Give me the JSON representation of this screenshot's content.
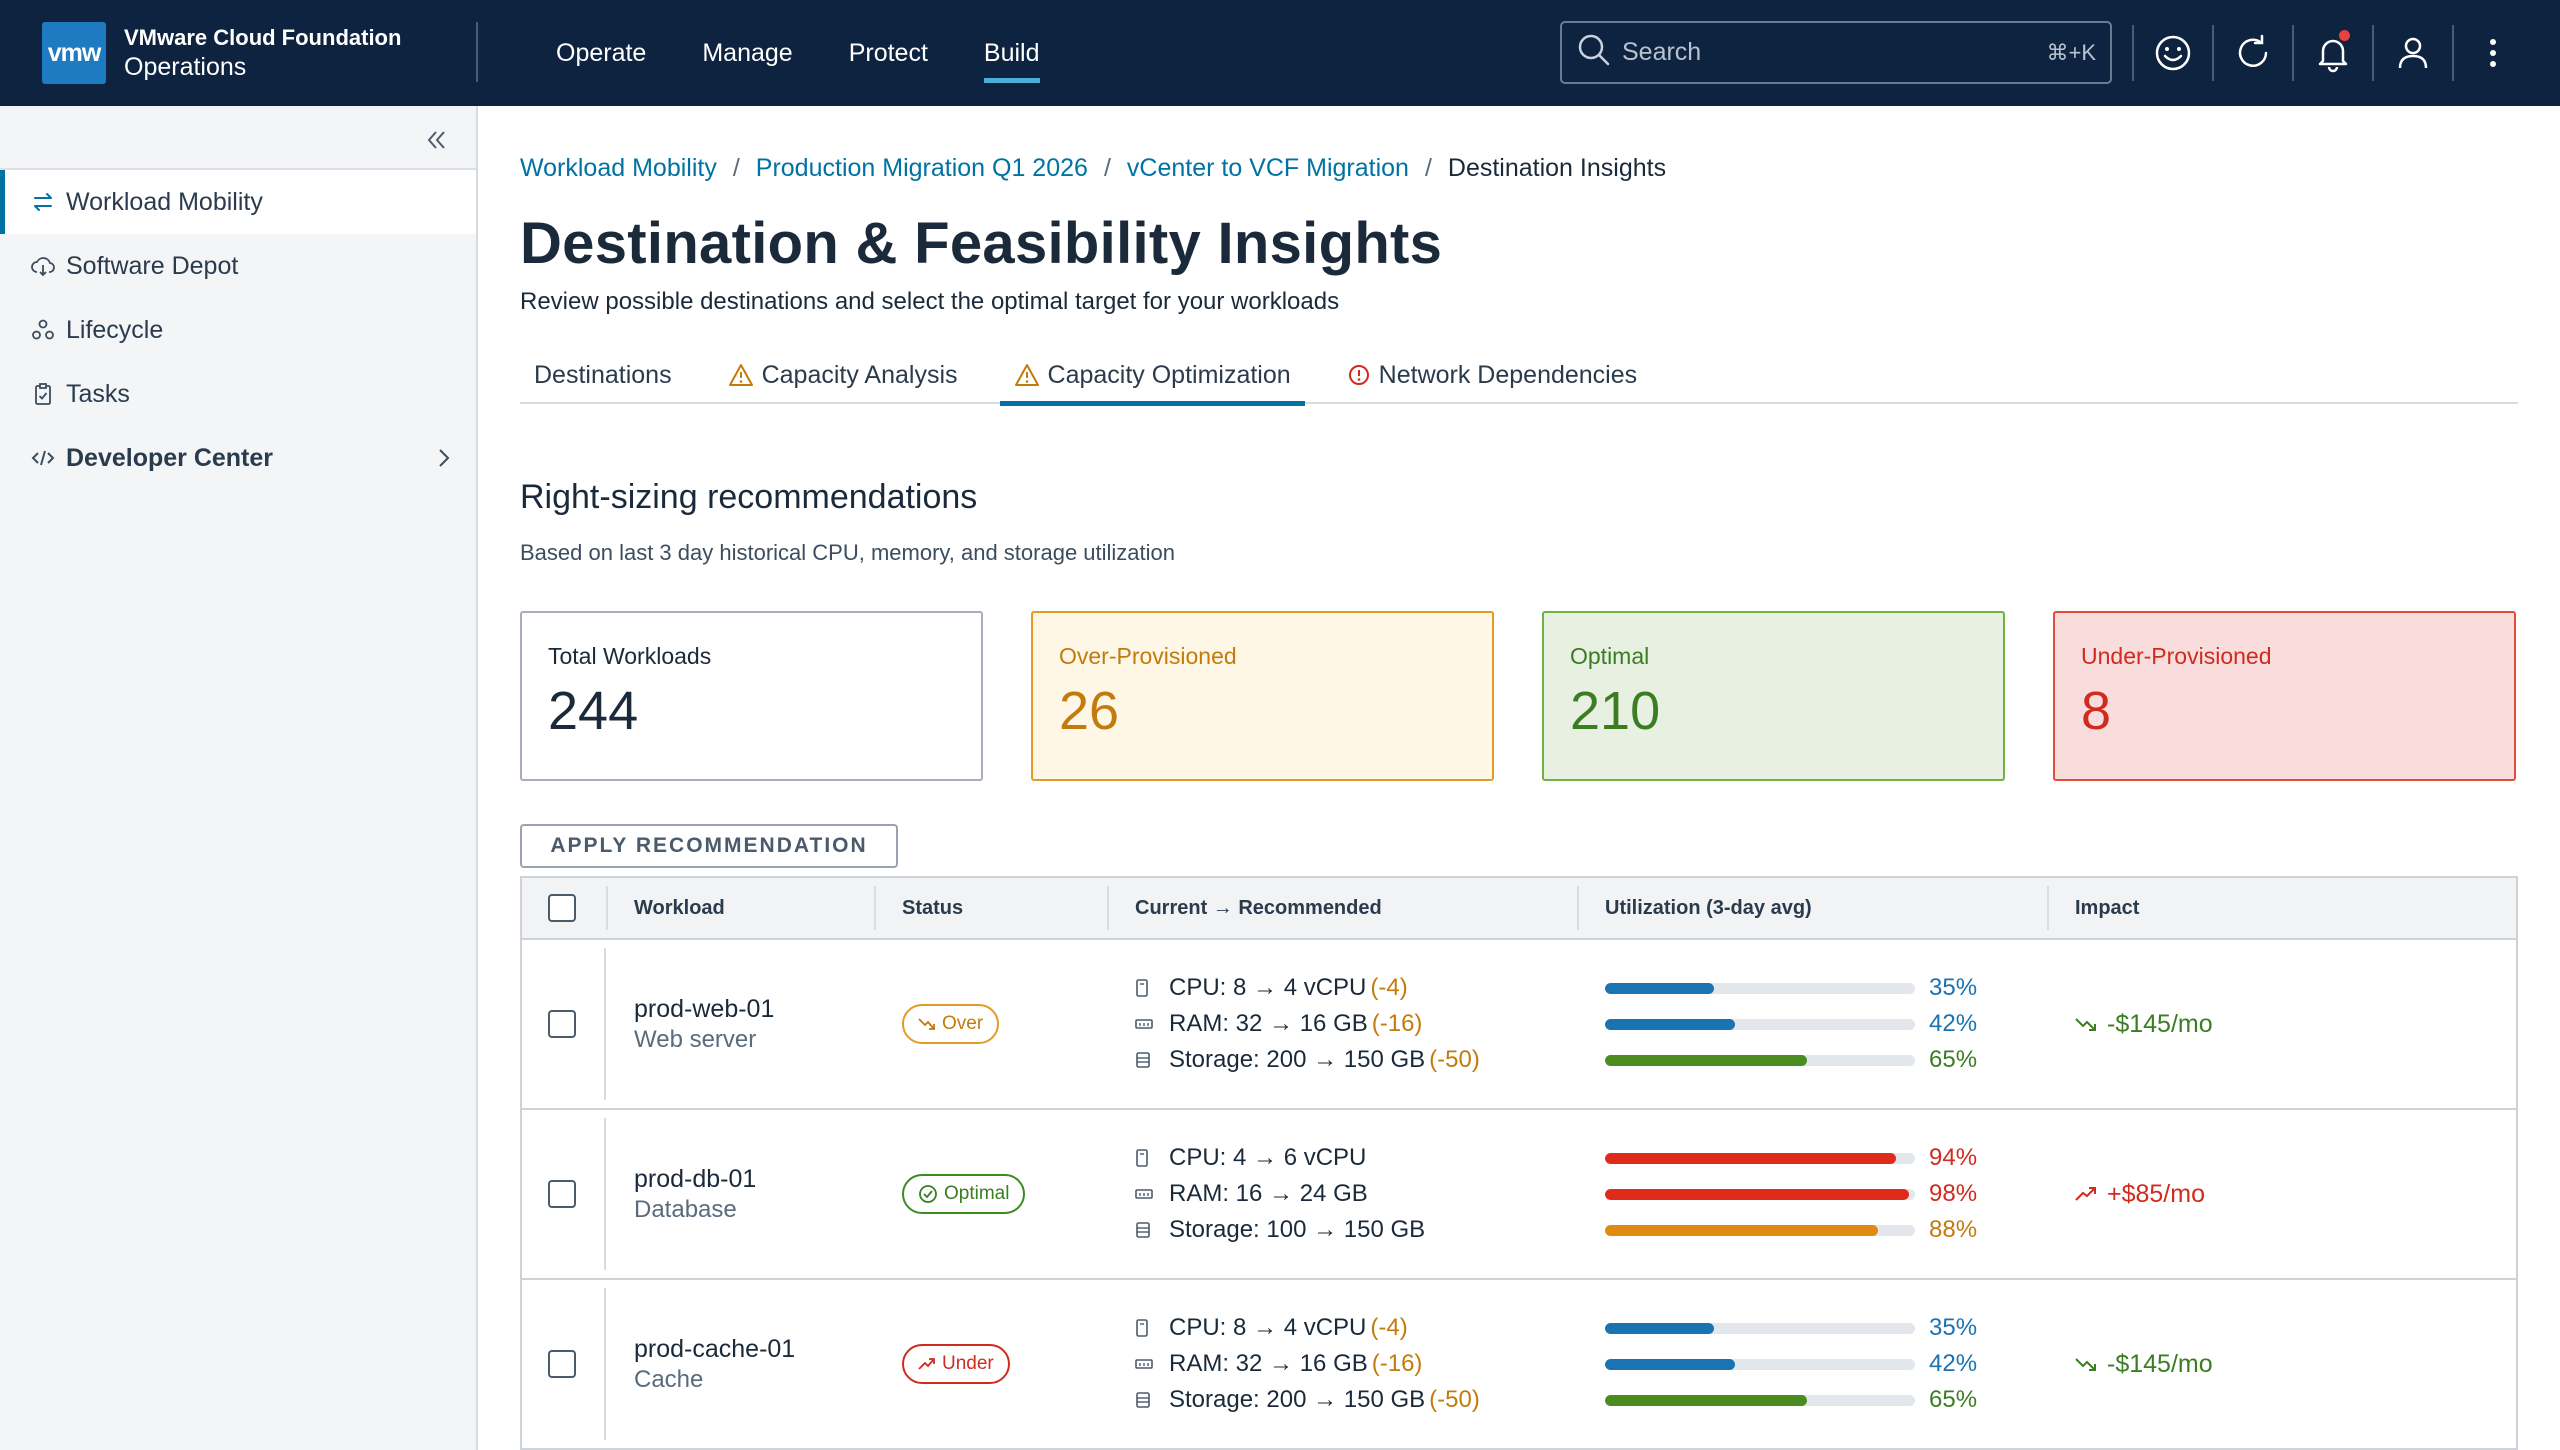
{
  "header": {
    "logo_text": "vmw",
    "brand_line1": "VMware Cloud Foundation",
    "brand_line2": "Operations",
    "nav": [
      "Operate",
      "Manage",
      "Protect",
      "Build"
    ],
    "active_nav": "Build",
    "search_placeholder": "Search",
    "search_shortcut": "⌘+K"
  },
  "sidebar": {
    "items": [
      {
        "label": "Workload Mobility",
        "icon": "swap-arrows-icon"
      },
      {
        "label": "Software Depot",
        "icon": "cloud-download-icon"
      },
      {
        "label": "Lifecycle",
        "icon": "lifecycle-icon"
      },
      {
        "label": "Tasks",
        "icon": "clipboard-icon"
      },
      {
        "label": "Developer Center",
        "icon": "code-icon"
      }
    ]
  },
  "breadcrumb": {
    "items": [
      "Workload Mobility",
      "Production Migration Q1 2026",
      "vCenter to VCF Migration"
    ],
    "current": "Destination Insights",
    "sep": "/"
  },
  "page": {
    "title": "Destination & Feasibility Insights",
    "subtitle": "Review possible destinations and select the optimal target for your workloads"
  },
  "tabs": [
    {
      "label": "Destinations"
    },
    {
      "label": "Capacity Analysis"
    },
    {
      "label": "Capacity Optimization"
    },
    {
      "label": "Network Dependencies"
    }
  ],
  "section": {
    "title": "Right-sizing recommendations",
    "subtitle": "Based on last 3 day historical CPU, memory, and storage utilization"
  },
  "cards": {
    "total": {
      "label": "Total Workloads",
      "value": "244"
    },
    "over": {
      "label": "Over-Provisioned",
      "value": "26"
    },
    "optimal": {
      "label": "Optimal",
      "value": "210"
    },
    "under": {
      "label": "Under-Provisioned",
      "value": "8"
    }
  },
  "apply_button": "APPLY RECOMMENDATION",
  "table": {
    "headers": [
      "Workload",
      "Status",
      "Current → Recommended",
      "Utilization (3-day avg)",
      "Impact"
    ],
    "rows": [
      {
        "name": "prod-web-01",
        "desc": "Web server",
        "status": "Over",
        "cpu": "CPU: 8 → 4 vCPU",
        "cpu_delta": "(-4)",
        "ram": "RAM: 32 → 16 GB",
        "ram_delta": "(-16)",
        "storage": "Storage: 200 → 150 GB",
        "storage_delta": "(-50)",
        "util": [
          {
            "pct": "35%",
            "value": 35,
            "color": "#1a73b3",
            "text_color": "#1a73b3"
          },
          {
            "pct": "42%",
            "value": 42,
            "color": "#1a73b3",
            "text_color": "#1a73b3"
          },
          {
            "pct": "65%",
            "value": 65,
            "color": "#4a8c1f",
            "text_color": "#3b7d23"
          }
        ],
        "impact": "-$145/mo"
      },
      {
        "name": "prod-db-01",
        "desc": "Database",
        "status": "Optimal",
        "cpu": "CPU: 4 → 6 vCPU",
        "cpu_delta": "",
        "ram": "RAM: 16 → 24 GB",
        "ram_delta": "",
        "storage": "Storage: 100 → 150 GB",
        "storage_delta": "",
        "util": [
          {
            "pct": "94%",
            "value": 94,
            "color": "#e12b1a",
            "text_color": "#d02b1f"
          },
          {
            "pct": "98%",
            "value": 98,
            "color": "#e12b1a",
            "text_color": "#d02b1f"
          },
          {
            "pct": "88%",
            "value": 88,
            "color": "#e08a12",
            "text_color": "#c27b0c"
          }
        ],
        "impact": "+$85/mo"
      },
      {
        "name": "prod-cache-01",
        "desc": "Cache",
        "status": "Under",
        "cpu": "CPU: 8 → 4 vCPU",
        "cpu_delta": "(-4)",
        "ram": "RAM: 32 → 16 GB",
        "ram_delta": "(-16)",
        "storage": "Storage: 200 → 150 GB",
        "storage_delta": "(-50)",
        "util": [
          {
            "pct": "35%",
            "value": 35,
            "color": "#1a73b3",
            "text_color": "#1a73b3"
          },
          {
            "pct": "42%",
            "value": 42,
            "color": "#1a73b3",
            "text_color": "#1a73b3"
          },
          {
            "pct": "65%",
            "value": 65,
            "color": "#4a8c1f",
            "text_color": "#3b7d23"
          }
        ],
        "impact": "-$145/mo"
      }
    ]
  },
  "colors": {
    "header_bg": "#0e2340",
    "accent": "#0072a3",
    "warning": "#e39b25",
    "success": "#3b7d23",
    "danger": "#d02b1f"
  }
}
